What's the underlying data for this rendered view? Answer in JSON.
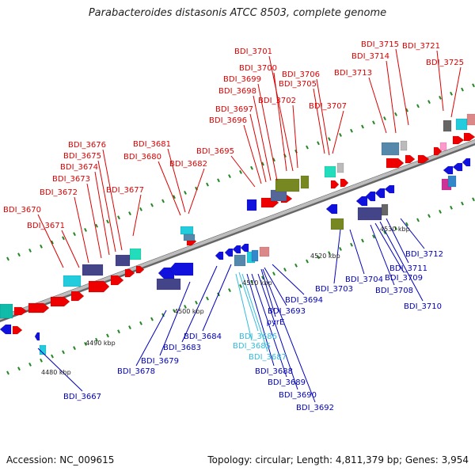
{
  "title": "Parabacteroides distasonis ATCC 8503, complete genome",
  "footer": {
    "accession": "Accession: NC_009615",
    "summary": "Topology: circular; Length: 4,811,379 bp; Genes: 3,954"
  },
  "scale_labels": [
    "4480 kbp",
    "4490 kbp",
    "4500 kbp",
    "4510 kbp",
    "4520 kbp",
    "4530 kbp"
  ],
  "colors": {
    "forward_label": "#dd0000",
    "reverse_label": "#0000bb",
    "rna_label": "#33bbdd",
    "axis": "#888888",
    "tick": "#228822"
  },
  "labels_top": [
    "BDI_3670",
    "BDI_3671",
    "BDI_3672",
    "BDI_3673",
    "BDI_3674",
    "BDI_3675",
    "BDI_3676",
    "BDI_3677",
    "BDI_3680",
    "BDI_3681",
    "BDI_3682",
    "BDI_3695",
    "BDI_3696",
    "BDI_3697",
    "BDI_3698",
    "BDI_3699",
    "BDI_3700",
    "BDI_3701",
    "BDI_3702",
    "BDI_3705",
    "BDI_3706",
    "BDI_3707",
    "BDI_3713",
    "BDI_3714",
    "BDI_3715",
    "BDI_3721",
    "BDI_3725"
  ],
  "labels_bottom": [
    "BDI_3667",
    "BDI_3678",
    "BDI_3679",
    "BDI_3683",
    "BDI_3684",
    "BDI_3685",
    "BDI_3686",
    "BDI_3687",
    "BDI_3688",
    "BDI_3689",
    "BDI_3690",
    "BDI_3692",
    "pyrE",
    "BDI_3693",
    "BDI_3694",
    "BDI_3703",
    "BDI_3704",
    "BDI_3708",
    "BDI_3709",
    "BDI_3710",
    "BDI_3711",
    "BDI_3712"
  ]
}
